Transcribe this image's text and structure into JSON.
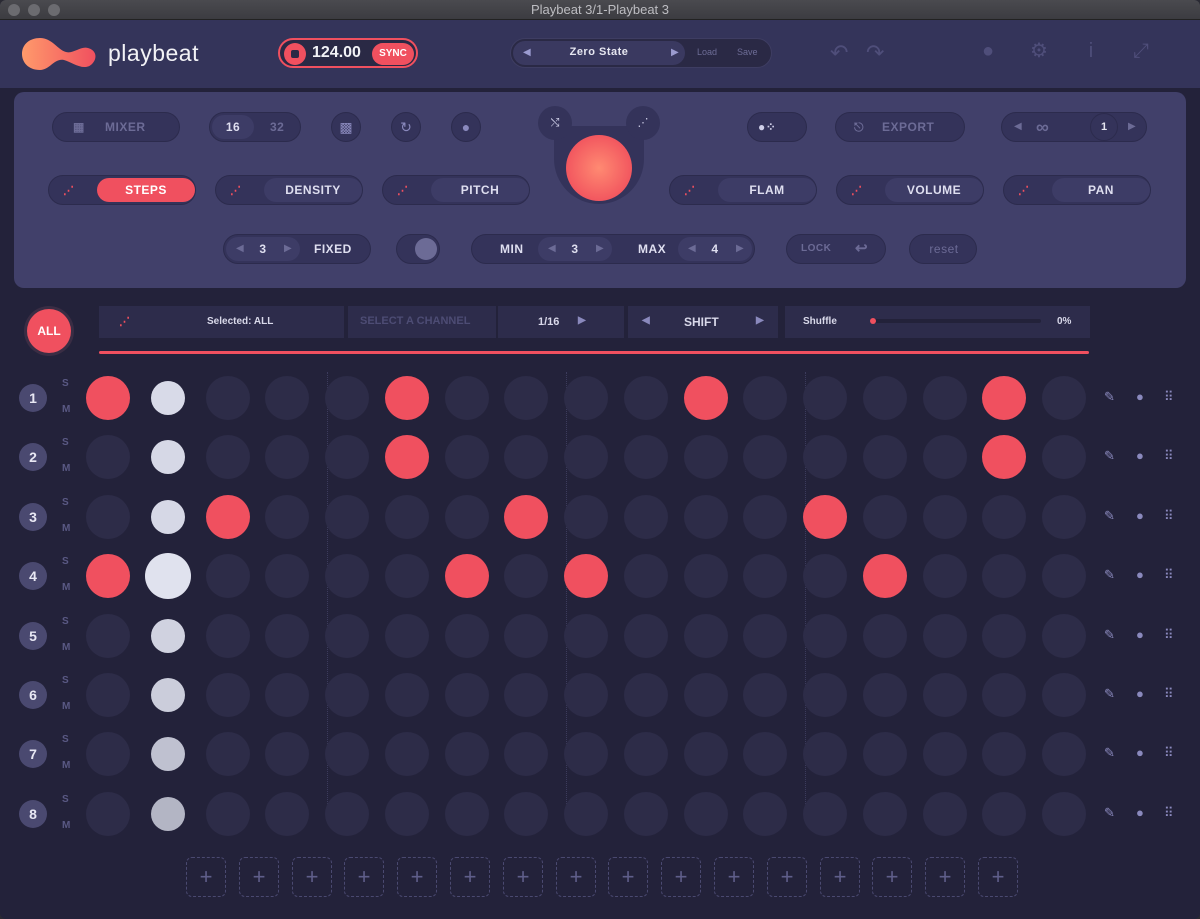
{
  "window": {
    "title": "Playbeat 3/1-Playbeat 3"
  },
  "brand": {
    "name": "playbeat",
    "accent": "#f0505f"
  },
  "transport": {
    "tempo": "124.00",
    "sync_label": "SYNC"
  },
  "preset": {
    "name": "Zero State",
    "load": "Load",
    "save": "Save"
  },
  "controls": {
    "mixer": "MIXER",
    "steps16": "16",
    "steps32": "32",
    "export": "EXPORT",
    "loop_count": "1",
    "steps": "STEPS",
    "density": "DENSITY",
    "pitch": "PITCH",
    "flam": "FLAM",
    "volume": "VOLUME",
    "pan": "PAN",
    "fixed_value": "3",
    "fixed": "FIXED",
    "min_label": "MIN",
    "min_value": "3",
    "max_label": "MAX",
    "max_value": "4",
    "lock": "LOCK",
    "reset": "reset"
  },
  "channel_bar": {
    "all": "ALL",
    "selected": "Selected: ALL",
    "select_channel": "SELECT A CHANNEL",
    "resolution": "1/16",
    "shift": "SHIFT",
    "shuffle": "Shuffle",
    "shuffle_value": "0%"
  },
  "channels": [
    {
      "num": "1",
      "s": "S",
      "m": "M",
      "steps": [
        2,
        1,
        0,
        0,
        0,
        2,
        0,
        0,
        0,
        0,
        2,
        0,
        0,
        0,
        0,
        2,
        0,
        0,
        0,
        0
      ]
    },
    {
      "num": "2",
      "s": "S",
      "m": "M",
      "steps": [
        0,
        1,
        0,
        0,
        0,
        2,
        0,
        0,
        0,
        0,
        0,
        0,
        0,
        0,
        0,
        2,
        0,
        0,
        0,
        0
      ]
    },
    {
      "num": "3",
      "s": "S",
      "m": "M",
      "steps": [
        0,
        1,
        2,
        0,
        0,
        0,
        0,
        2,
        0,
        0,
        0,
        0,
        2,
        0,
        0,
        0,
        0,
        2,
        0,
        0
      ]
    },
    {
      "num": "4",
      "s": "S",
      "m": "M",
      "steps": [
        2,
        1,
        0,
        0,
        0,
        0,
        2,
        0,
        2,
        0,
        0,
        0,
        0,
        2,
        0,
        0,
        0,
        0,
        0,
        0
      ]
    },
    {
      "num": "5",
      "s": "S",
      "m": "M",
      "steps": [
        0,
        1,
        0,
        0,
        0,
        0,
        0,
        0,
        0,
        0,
        0,
        0,
        0,
        0,
        0,
        0,
        0,
        0,
        0,
        0
      ]
    },
    {
      "num": "6",
      "s": "S",
      "m": "M",
      "steps": [
        0,
        1,
        0,
        0,
        0,
        0,
        0,
        0,
        0,
        0,
        0,
        0,
        0,
        0,
        0,
        0,
        0,
        0,
        0,
        0
      ]
    },
    {
      "num": "7",
      "s": "S",
      "m": "M",
      "steps": [
        0,
        1,
        0,
        0,
        0,
        0,
        0,
        0,
        0,
        0,
        0,
        0,
        0,
        0,
        0,
        0,
        0,
        0,
        0,
        0
      ]
    },
    {
      "num": "8",
      "s": "S",
      "m": "M",
      "steps": [
        0,
        1,
        0,
        0,
        0,
        0,
        0,
        0,
        0,
        0,
        0,
        0,
        0,
        0,
        0,
        0,
        0,
        0,
        0,
        0
      ]
    }
  ],
  "add_slots": "+"
}
